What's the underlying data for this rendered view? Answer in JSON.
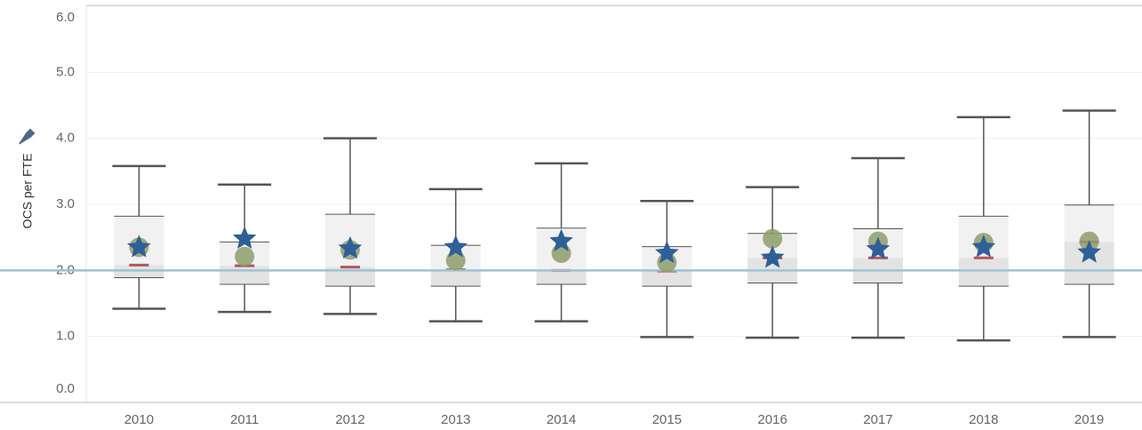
{
  "chart_data": {
    "type": "box",
    "y_label": "OCS per FTE",
    "categories": [
      "2010",
      "2011",
      "2012",
      "2013",
      "2014",
      "2015",
      "2016",
      "2017",
      "2018",
      "2019"
    ],
    "boxes": [
      {
        "low": 1.42,
        "q1": 1.89,
        "median": 2.08,
        "q3": 2.82,
        "high": 3.58
      },
      {
        "low": 1.37,
        "q1": 1.79,
        "median": 2.07,
        "q3": 2.43,
        "high": 3.3
      },
      {
        "low": 1.34,
        "q1": 1.76,
        "median": 2.05,
        "q3": 2.85,
        "high": 4.0
      },
      {
        "low": 1.23,
        "q1": 1.76,
        "median": 2.01,
        "q3": 2.38,
        "high": 3.23
      },
      {
        "low": 1.23,
        "q1": 1.79,
        "median": 2.0,
        "q3": 2.64,
        "high": 3.62
      },
      {
        "low": 0.99,
        "q1": 1.76,
        "median": 1.99,
        "q3": 2.36,
        "high": 3.05
      },
      {
        "low": 0.98,
        "q1": 1.81,
        "median": 2.19,
        "q3": 2.56,
        "high": 3.26
      },
      {
        "low": 0.98,
        "q1": 1.81,
        "median": 2.19,
        "q3": 2.63,
        "high": 3.7
      },
      {
        "low": 0.94,
        "q1": 1.76,
        "median": 2.19,
        "q3": 2.82,
        "high": 4.32
      },
      {
        "low": 0.99,
        "q1": 1.79,
        "median": 2.43,
        "q3": 2.99,
        "high": 4.42
      }
    ],
    "circle_values": [
      2.35,
      2.21,
      2.31,
      2.15,
      2.26,
      2.12,
      2.48,
      2.44,
      2.42,
      2.44
    ],
    "star_values": [
      2.35,
      2.48,
      2.33,
      2.35,
      2.44,
      2.26,
      2.19,
      2.32,
      2.35,
      2.27
    ],
    "reference_line": 2.0,
    "colors": {
      "box_upper": "#f1f1f1",
      "box_lower": "#e3e3e3",
      "whisker": "#555555",
      "median": "#b5545c",
      "circle": "#8e9e6c",
      "star": "#2f5f98",
      "reference": "#9cc3d3"
    },
    "ylim": [
      0,
      6
    ],
    "yticks": [
      {
        "value": 0,
        "label": "0.0"
      },
      {
        "value": 1,
        "label": "1.0"
      },
      {
        "value": 2,
        "label": "2.0"
      },
      {
        "value": 3,
        "label": "3.0"
      },
      {
        "value": 4,
        "label": "4.0"
      },
      {
        "value": 5,
        "label": "5.0"
      },
      {
        "value": 6,
        "label": "6.0"
      }
    ],
    "grid": true
  }
}
